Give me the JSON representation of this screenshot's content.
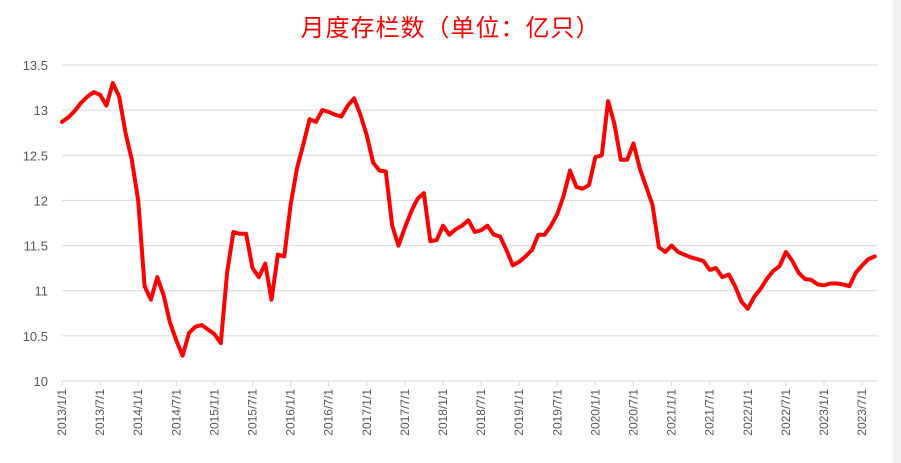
{
  "chart_data": {
    "type": "line",
    "title": "月度存栏数（单位：亿只）",
    "xlabel": "",
    "ylabel": "",
    "ylim": [
      10,
      13.5
    ],
    "yticks": [
      "10",
      "10.5",
      "11",
      "11.5",
      "12",
      "12.5",
      "13",
      "13.5"
    ],
    "xtick_labels": [
      "2013/1/1",
      "2013/7/1",
      "2014/1/1",
      "2014/7/1",
      "2015/1/1",
      "2015/7/1",
      "2016/1/1",
      "2016/7/1",
      "2017/1/1",
      "2017/7/1",
      "2018/1/1",
      "2018/7/1",
      "2019/1/1",
      "2019/7/1",
      "2020/1/1",
      "2020/7/1",
      "2021/1/1",
      "2021/7/1",
      "2022/1/1",
      "2022/7/1",
      "2023/1/1",
      "2023/7/1"
    ],
    "grid": true,
    "legend": null,
    "line_color": "#ff0000",
    "series": [
      {
        "name": "月度存栏数",
        "start": "2013/1",
        "frequency": "monthly",
        "values": [
          12.87,
          12.92,
          12.99,
          13.08,
          13.15,
          13.2,
          13.17,
          13.05,
          13.3,
          13.15,
          12.75,
          12.45,
          12.0,
          11.05,
          10.9,
          11.15,
          10.95,
          10.65,
          10.45,
          10.28,
          10.53,
          10.6,
          10.62,
          10.57,
          10.52,
          10.42,
          11.2,
          11.65,
          11.63,
          11.63,
          11.25,
          11.15,
          11.3,
          10.9,
          11.4,
          11.38,
          11.95,
          12.35,
          12.62,
          12.9,
          12.87,
          13.0,
          12.98,
          12.95,
          12.93,
          13.05,
          13.13,
          12.95,
          12.72,
          12.42,
          12.33,
          12.32,
          11.72,
          11.5,
          11.7,
          11.88,
          12.02,
          12.08,
          11.55,
          11.56,
          11.72,
          11.62,
          11.68,
          11.72,
          11.78,
          11.65,
          11.67,
          11.72,
          11.62,
          11.6,
          11.45,
          11.28,
          11.32,
          11.38,
          11.45,
          11.62,
          11.62,
          11.72,
          11.85,
          12.05,
          12.33,
          12.15,
          12.13,
          12.17,
          12.48,
          12.5,
          13.1,
          12.85,
          12.45,
          12.45,
          12.63,
          12.35,
          12.15,
          11.95,
          11.48,
          11.43,
          11.5,
          11.43,
          11.4,
          11.37,
          11.35,
          11.33,
          11.23,
          11.25,
          11.15,
          11.18,
          11.05,
          10.88,
          10.8,
          10.93,
          11.02,
          11.13,
          11.22,
          11.27,
          11.43,
          11.33,
          11.2,
          11.13,
          11.12,
          11.07,
          11.06,
          11.08,
          11.08,
          11.07,
          11.05,
          11.2,
          11.28,
          11.35,
          11.38
        ]
      }
    ]
  }
}
